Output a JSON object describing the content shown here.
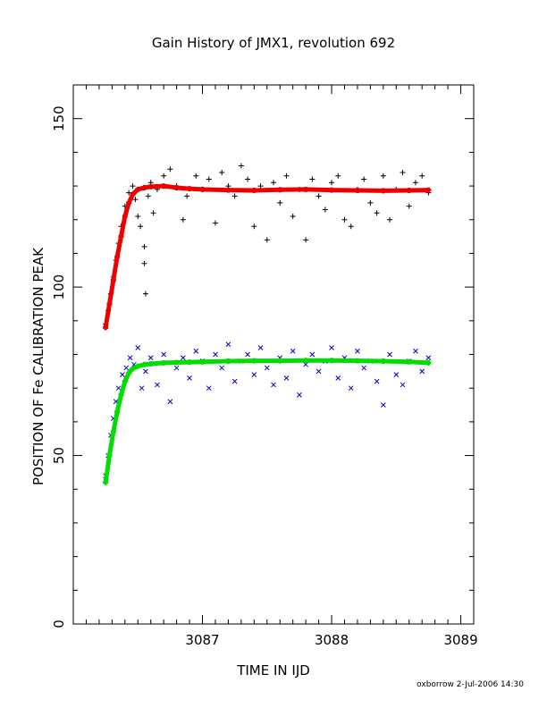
{
  "chart_data": {
    "type": "scatter",
    "title": "Gain History of JMX1, revolution 692",
    "xlabel": "TIME IN IJD",
    "ylabel": "POSITION OF Fe CALIBRATION PEAK",
    "xlim": [
      3086.0,
      3089.1
    ],
    "ylim": [
      0,
      160
    ],
    "xticks": [
      3087,
      3088,
      3089
    ],
    "yticks": [
      0,
      50,
      100,
      150
    ],
    "grid": false,
    "footer": "oxborrow  2-Jul-2006 14:30",
    "series": [
      {
        "marker": "plus",
        "color": "#000000",
        "kind": "data",
        "x": [
          3086.25,
          3086.27,
          3086.29,
          3086.31,
          3086.33,
          3086.35,
          3086.37,
          3086.4,
          3086.43,
          3086.46,
          3086.48,
          3086.5,
          3086.52,
          3086.55,
          3086.55,
          3086.56,
          3086.58,
          3086.6,
          3086.62,
          3086.65,
          3086.7,
          3086.75,
          3086.8,
          3086.85,
          3086.88,
          3086.95,
          3087.0,
          3087.05,
          3087.1,
          3087.15,
          3087.2,
          3087.25,
          3087.3,
          3087.35,
          3087.4,
          3087.45,
          3087.5,
          3087.55,
          3087.6,
          3087.65,
          3087.7,
          3087.75,
          3087.8,
          3087.85,
          3087.9,
          3087.95,
          3088.0,
          3088.05,
          3088.1,
          3088.15,
          3088.2,
          3088.25,
          3088.3,
          3088.35,
          3088.4,
          3088.45,
          3088.5,
          3088.55,
          3088.6,
          3088.65,
          3088.7,
          3088.75
        ],
        "y": [
          89,
          93,
          98,
          103,
          108,
          113,
          118,
          124,
          128,
          130,
          126,
          121,
          118,
          112,
          107,
          98,
          127,
          131,
          122,
          129,
          133,
          135,
          130,
          120,
          127,
          133,
          129,
          132,
          119,
          134,
          130,
          127,
          136,
          132,
          118,
          130,
          114,
          131,
          125,
          133,
          121,
          129,
          114,
          132,
          127,
          123,
          131,
          133,
          120,
          118,
          129,
          132,
          125,
          122,
          133,
          120,
          129,
          134,
          124,
          131,
          133,
          128
        ]
      },
      {
        "marker": "x",
        "color": "#0000cc",
        "kind": "data",
        "x": [
          3086.25,
          3086.27,
          3086.29,
          3086.31,
          3086.33,
          3086.35,
          3086.38,
          3086.41,
          3086.44,
          3086.47,
          3086.5,
          3086.53,
          3086.56,
          3086.6,
          3086.65,
          3086.7,
          3086.75,
          3086.8,
          3086.85,
          3086.9,
          3086.95,
          3087.0,
          3087.05,
          3087.1,
          3087.15,
          3087.2,
          3087.25,
          3087.3,
          3087.35,
          3087.4,
          3087.45,
          3087.5,
          3087.55,
          3087.6,
          3087.65,
          3087.7,
          3087.75,
          3087.8,
          3087.85,
          3087.9,
          3087.95,
          3088.0,
          3088.05,
          3088.1,
          3088.15,
          3088.2,
          3088.25,
          3088.3,
          3088.35,
          3088.4,
          3088.45,
          3088.5,
          3088.55,
          3088.6,
          3088.65,
          3088.7,
          3088.75
        ],
        "y": [
          44,
          50,
          56,
          61,
          66,
          70,
          74,
          76,
          79,
          77,
          82,
          70,
          75,
          79,
          71,
          80,
          66,
          76,
          79,
          73,
          81,
          78,
          70,
          80,
          76,
          83,
          72,
          78,
          80,
          74,
          82,
          76,
          71,
          79,
          73,
          81,
          68,
          77,
          80,
          75,
          78,
          82,
          73,
          79,
          70,
          81,
          76,
          78,
          72,
          65,
          80,
          74,
          71,
          78,
          81,
          75,
          79
        ]
      },
      {
        "marker": "plus",
        "color": "#ee0000",
        "kind": "fit",
        "x": [
          3086.25,
          3086.28,
          3086.31,
          3086.34,
          3086.37,
          3086.4,
          3086.43,
          3086.46,
          3086.5,
          3086.55,
          3086.6,
          3086.7,
          3086.8,
          3086.9,
          3087.0,
          3087.2,
          3087.4,
          3087.6,
          3087.8,
          3088.0,
          3088.2,
          3088.4,
          3088.6,
          3088.75
        ],
        "y": [
          88,
          95,
          102,
          109,
          115,
          121,
          125,
          127.5,
          129,
          129.5,
          129.8,
          130,
          129.5,
          129.2,
          129,
          128.8,
          128.7,
          128.9,
          129,
          128.8,
          128.7,
          128.6,
          128.7,
          128.8
        ]
      },
      {
        "marker": "plus",
        "color": "#00dd00",
        "kind": "fit",
        "x": [
          3086.25,
          3086.28,
          3086.31,
          3086.34,
          3086.37,
          3086.4,
          3086.43,
          3086.46,
          3086.5,
          3086.55,
          3086.6,
          3086.7,
          3086.8,
          3086.9,
          3087.0,
          3087.2,
          3087.4,
          3087.6,
          3087.8,
          3088.0,
          3088.2,
          3088.4,
          3088.6,
          3088.75
        ],
        "y": [
          42,
          50,
          57,
          63,
          68,
          72,
          74.5,
          75.8,
          76.5,
          77,
          77.2,
          77.5,
          77.6,
          77.7,
          77.8,
          78,
          78.1,
          78.1,
          78.2,
          78.2,
          78.1,
          78,
          77.8,
          77.5
        ]
      }
    ]
  }
}
